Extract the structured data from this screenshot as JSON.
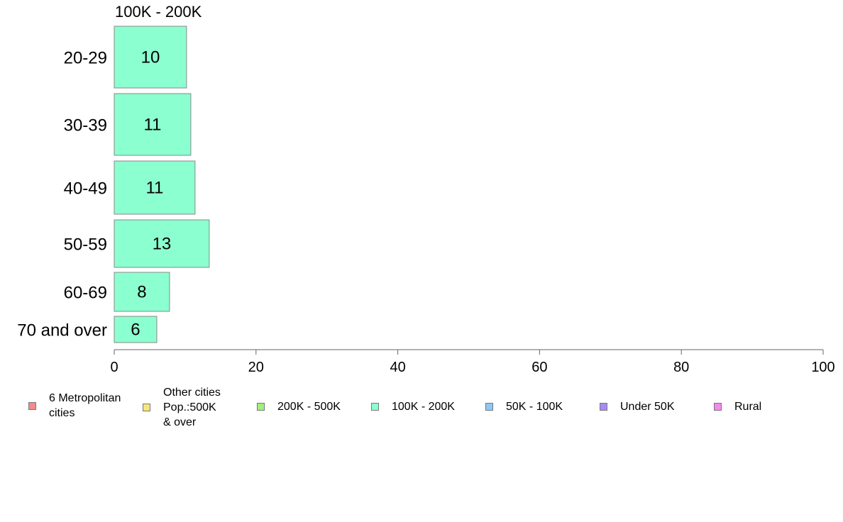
{
  "chart_data": {
    "type": "bar",
    "orientation": "horizontal",
    "title": "100K - 200K",
    "categories": [
      "20-29",
      "30-39",
      "40-49",
      "50-59",
      "60-69",
      "70 and over"
    ],
    "values": [
      10,
      11,
      11,
      13,
      8,
      6
    ],
    "bar_values_exact": [
      10.2,
      10.8,
      11.4,
      13.4,
      7.8,
      6.0
    ],
    "data_labels": [
      "10",
      "11",
      "11",
      "13",
      "8",
      "6"
    ],
    "xlim": [
      0,
      100
    ],
    "xticks": [
      "0",
      "20",
      "40",
      "60",
      "80",
      "100"
    ],
    "xlabel": "",
    "ylabel": "",
    "bar_color": "#8cffd0",
    "grid": false,
    "legend_position": "bottom"
  },
  "legend": [
    {
      "label": "6 Metropolitan\n cities",
      "color": "#f58a8a"
    },
    {
      "label": "Other cities\nPop.:500K\n & over",
      "color": "#f5e680"
    },
    {
      "label": "200K - 500K",
      "color": "#a0f07a"
    },
    {
      "label": "100K - 200K",
      "color": "#8cffd0"
    },
    {
      "label": "50K - 100K",
      "color": "#8cc8f5"
    },
    {
      "label": "Under 50K",
      "color": "#a88af5"
    },
    {
      "label": "Rural",
      "color": "#f58aee"
    }
  ]
}
